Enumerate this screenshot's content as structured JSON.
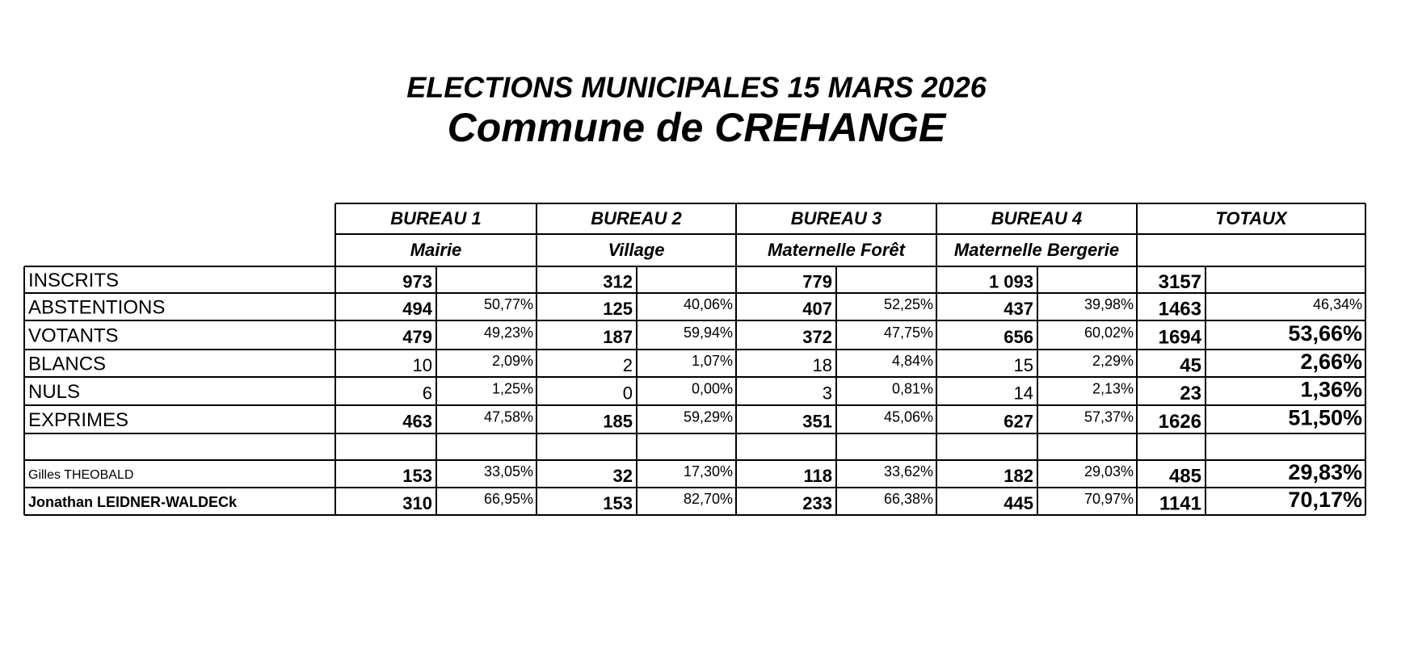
{
  "header": {
    "title": "ELECTIONS MUNICIPALES 15 MARS 2026",
    "subtitle": "Commune de CREHANGE"
  },
  "table": {
    "columns": [
      {
        "name": "BUREAU 1",
        "location": "Mairie"
      },
      {
        "name": "BUREAU 2",
        "location": "Village"
      },
      {
        "name": "BUREAU 3",
        "location": "Maternelle Forêt"
      },
      {
        "name": "BUREAU 4",
        "location": "Maternelle Bergerie"
      },
      {
        "name": "TOTAUX"
      }
    ],
    "rows": [
      {
        "label": "INSCRITS",
        "cells": [
          [
            "973"
          ],
          [
            "312"
          ],
          [
            "779"
          ],
          [
            "1 093"
          ],
          [
            "3157"
          ]
        ]
      },
      {
        "label": "ABSTENTIONS",
        "cells": [
          [
            "494",
            "50,77%"
          ],
          [
            "125",
            "40,06%"
          ],
          [
            "407",
            "52,25%"
          ],
          [
            "437",
            "39,98%"
          ],
          [
            "1463",
            "46,34%"
          ]
        ]
      },
      {
        "label": "VOTANTS",
        "cells": [
          [
            "479",
            "49,23%"
          ],
          [
            "187",
            "59,94%"
          ],
          [
            "372",
            "47,75%"
          ],
          [
            "656",
            "60,02%"
          ],
          [
            "1694",
            "53,66%"
          ]
        ]
      },
      {
        "label": "BLANCS",
        "cells": [
          [
            "10",
            "2,09%"
          ],
          [
            "2",
            "1,07%"
          ],
          [
            "18",
            "4,84%"
          ],
          [
            "15",
            "2,29%"
          ],
          [
            "45",
            "2,66%"
          ]
        ]
      },
      {
        "label": "NULS",
        "cells": [
          [
            "6",
            "1,25%"
          ],
          [
            "0",
            "0,00%"
          ],
          [
            "3",
            "0,81%"
          ],
          [
            "14",
            "2,13%"
          ],
          [
            "23",
            "1,36%"
          ]
        ]
      },
      {
        "label": "EXPRIMES",
        "cells": [
          [
            "463",
            "47,58%"
          ],
          [
            "185",
            "59,29%"
          ],
          [
            "351",
            "45,06%"
          ],
          [
            "627",
            "57,37%"
          ],
          [
            "1626",
            "51,50%"
          ]
        ]
      },
      {
        "label": "Gilles THEOBALD",
        "cells": [
          [
            "153",
            "33,05%"
          ],
          [
            "32",
            "17,30%"
          ],
          [
            "118",
            "33,62%"
          ],
          [
            "182",
            "29,03%"
          ],
          [
            "485",
            "29,83%"
          ]
        ]
      },
      {
        "label": "Jonathan LEIDNER-WALDECk",
        "cells": [
          [
            "310",
            "66,95%"
          ],
          [
            "153",
            "82,70%"
          ],
          [
            "233",
            "66,38%"
          ],
          [
            "445",
            "70,97%"
          ],
          [
            "1141",
            "70,17%"
          ]
        ]
      }
    ]
  }
}
